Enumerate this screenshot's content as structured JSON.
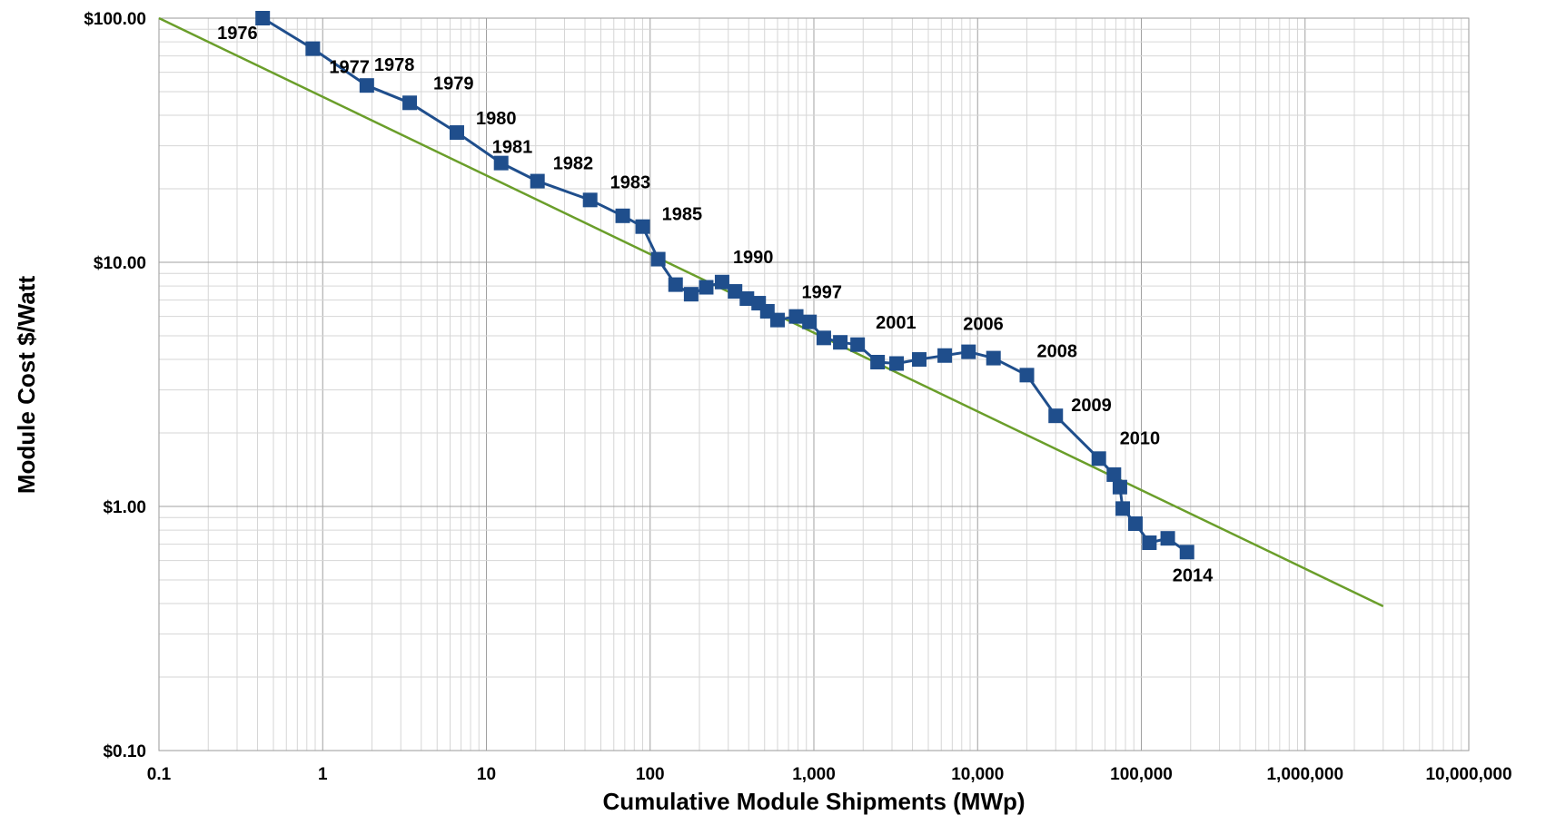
{
  "chart_data": {
    "type": "line",
    "title": "",
    "xlabel": "Cumulative Module Shipments (MWp)",
    "ylabel": "Module Cost $/Watt",
    "x_scale": "log",
    "y_scale": "log",
    "xlim": [
      0.1,
      10000000
    ],
    "ylim": [
      0.1,
      100
    ],
    "grid": true,
    "x_ticks": [
      {
        "value": 0.1,
        "label": "0.1"
      },
      {
        "value": 1,
        "label": "1"
      },
      {
        "value": 10,
        "label": "10"
      },
      {
        "value": 100,
        "label": "100"
      },
      {
        "value": 1000,
        "label": "1,000"
      },
      {
        "value": 10000,
        "label": "10,000"
      },
      {
        "value": 100000,
        "label": "100,000"
      },
      {
        "value": 1000000,
        "label": "1,000,000"
      },
      {
        "value": 10000000,
        "label": "10,000,000"
      }
    ],
    "y_ticks": [
      {
        "value": 100,
        "label": "$100.00"
      },
      {
        "value": 10,
        "label": "$10.00"
      },
      {
        "value": 1,
        "label": "$1.00"
      },
      {
        "value": 0.1,
        "label": "$0.10"
      }
    ],
    "colors": {
      "data": "#1f4e8c",
      "trend": "#6a9e2a"
    },
    "series": [
      {
        "name": "",
        "kind": "data",
        "points": [
          {
            "x": 0.43,
            "y": 100.0,
            "label": "1976"
          },
          {
            "x": 0.87,
            "y": 75.0,
            "label": "1977"
          },
          {
            "x": 1.86,
            "y": 53.0,
            "label": "1978"
          },
          {
            "x": 3.4,
            "y": 45.0,
            "label": "1979"
          },
          {
            "x": 6.6,
            "y": 34.0,
            "label": "1980"
          },
          {
            "x": 12.3,
            "y": 25.5,
            "label": "1981"
          },
          {
            "x": 20.5,
            "y": 21.5,
            "label": "1982"
          },
          {
            "x": 43.0,
            "y": 18.0,
            "label": "1983"
          },
          {
            "x": 68.0,
            "y": 15.5,
            "label": ""
          },
          {
            "x": 90.0,
            "y": 14.0,
            "label": ""
          },
          {
            "x": 112.0,
            "y": 10.3,
            "label": "1985"
          },
          {
            "x": 143.0,
            "y": 8.1,
            "label": ""
          },
          {
            "x": 178.0,
            "y": 7.4,
            "label": ""
          },
          {
            "x": 220.0,
            "y": 7.9,
            "label": ""
          },
          {
            "x": 275.0,
            "y": 8.3,
            "label": "1990"
          },
          {
            "x": 330.0,
            "y": 7.6,
            "label": ""
          },
          {
            "x": 390.0,
            "y": 7.1,
            "label": ""
          },
          {
            "x": 460.0,
            "y": 6.8,
            "label": ""
          },
          {
            "x": 520.0,
            "y": 6.3,
            "label": ""
          },
          {
            "x": 600.0,
            "y": 5.8,
            "label": ""
          },
          {
            "x": 780.0,
            "y": 6.0,
            "label": "1997"
          },
          {
            "x": 940.0,
            "y": 5.7,
            "label": ""
          },
          {
            "x": 1150.0,
            "y": 4.9,
            "label": ""
          },
          {
            "x": 1450.0,
            "y": 4.7,
            "label": ""
          },
          {
            "x": 1850.0,
            "y": 4.6,
            "label": ""
          },
          {
            "x": 2450.0,
            "y": 3.9,
            "label": "2001"
          },
          {
            "x": 3200.0,
            "y": 3.85,
            "label": ""
          },
          {
            "x": 4400.0,
            "y": 4.0,
            "label": ""
          },
          {
            "x": 6300.0,
            "y": 4.15,
            "label": ""
          },
          {
            "x": 8800.0,
            "y": 4.3,
            "label": "2006"
          },
          {
            "x": 12500.0,
            "y": 4.05,
            "label": ""
          },
          {
            "x": 20000.0,
            "y": 3.45,
            "label": "2008"
          },
          {
            "x": 30000.0,
            "y": 2.35,
            "label": "2009"
          },
          {
            "x": 55000.0,
            "y": 1.57,
            "label": "2010"
          },
          {
            "x": 68000.0,
            "y": 1.35,
            "label": ""
          },
          {
            "x": 74000.0,
            "y": 1.2,
            "label": ""
          },
          {
            "x": 77000.0,
            "y": 0.98,
            "label": ""
          },
          {
            "x": 92000.0,
            "y": 0.85,
            "label": ""
          },
          {
            "x": 112000.0,
            "y": 0.71,
            "label": ""
          },
          {
            "x": 145000.0,
            "y": 0.74,
            "label": ""
          },
          {
            "x": 190000.0,
            "y": 0.65,
            "label": "2014"
          }
        ]
      },
      {
        "name": "",
        "kind": "trend",
        "points": [
          {
            "x": 0.1,
            "y": 100.0
          },
          {
            "x": 3000000,
            "y": 0.39
          }
        ]
      }
    ]
  }
}
